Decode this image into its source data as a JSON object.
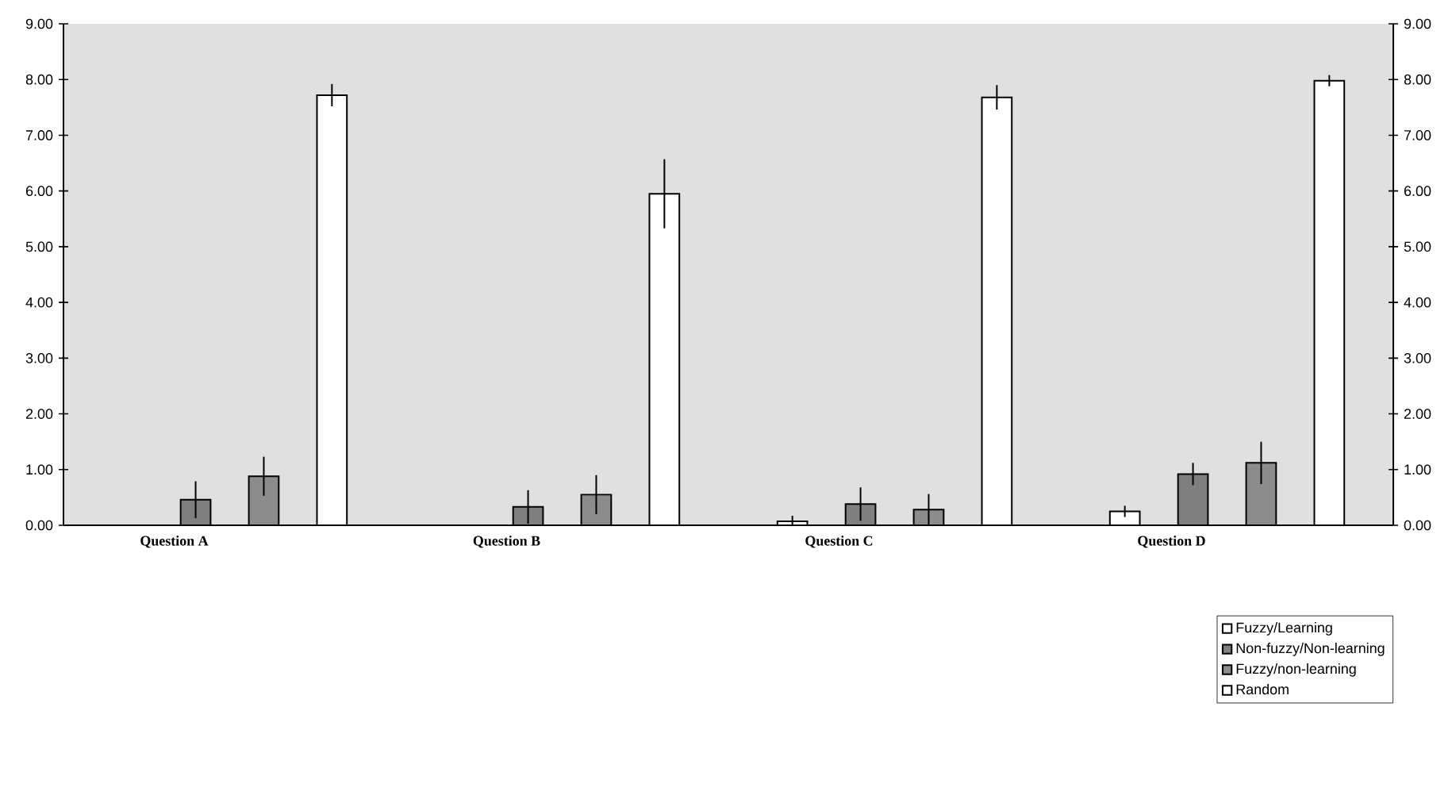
{
  "chart_data": {
    "type": "bar",
    "categories": [
      "Question A",
      "Question B",
      "Question C",
      "Question D"
    ],
    "series": [
      {
        "name": "Fuzzy/Learning",
        "color": "#ffffff",
        "values": [
          0,
          0,
          0.07,
          0.25
        ],
        "errors": [
          null,
          null,
          0.1,
          0.1
        ]
      },
      {
        "name": "Non-fuzzy/Non-learning",
        "color": "#7f7f7f",
        "values": [
          0.46,
          0.33,
          0.38,
          0.92
        ],
        "errors": [
          0.33,
          0.3,
          0.3,
          0.2
        ]
      },
      {
        "name": "Fuzzy/non-learning",
        "color": "#8c8c8c",
        "values": [
          0.88,
          0.55,
          0.28,
          1.12
        ],
        "errors": [
          0.35,
          0.35,
          0.28,
          0.38
        ]
      },
      {
        "name": "Random",
        "color": "#ffffff",
        "values": [
          7.72,
          5.95,
          7.68,
          7.98
        ],
        "errors": [
          0.2,
          0.62,
          0.22,
          0.1
        ]
      }
    ],
    "ylim": [
      0,
      9
    ],
    "yticks": [
      {
        "value": 0,
        "label": "0.00"
      },
      {
        "value": 1,
        "label": "1.00"
      },
      {
        "value": 2,
        "label": "2.00"
      },
      {
        "value": 3,
        "label": "3.00"
      },
      {
        "value": 4,
        "label": "4.00"
      },
      {
        "value": 5,
        "label": "5.00"
      },
      {
        "value": 6,
        "label": "6.00"
      },
      {
        "value": 7,
        "label": "7.00"
      },
      {
        "value": 8,
        "label": "8.00"
      },
      {
        "value": 9,
        "label": "9.00"
      }
    ],
    "y2lim": [
      0,
      9
    ],
    "y2ticks": [
      {
        "value": 0,
        "label": "0.00"
      },
      {
        "value": 1,
        "label": "1.00"
      },
      {
        "value": 2,
        "label": "2.00"
      },
      {
        "value": 3,
        "label": "3.00"
      },
      {
        "value": 4,
        "label": "4.00"
      },
      {
        "value": 5,
        "label": "5.00"
      },
      {
        "value": 6,
        "label": "6.00"
      },
      {
        "value": 7,
        "label": "7.00"
      },
      {
        "value": 8,
        "label": "8.00"
      },
      {
        "value": 9,
        "label": "9.00"
      }
    ],
    "legend": "bottom right"
  }
}
